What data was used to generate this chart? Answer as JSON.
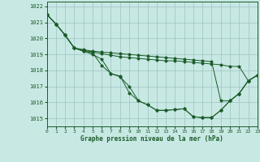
{
  "title": "Graphe pression niveau de la mer (hPa)",
  "bg_color": "#c8e8e4",
  "grid_color": "#9cc4be",
  "line_color": "#1a5c28",
  "xlim": [
    0,
    23
  ],
  "ylim": [
    1014.5,
    1022.3
  ],
  "yticks": [
    1015,
    1016,
    1017,
    1018,
    1019,
    1020,
    1021,
    1022
  ],
  "xticks": [
    0,
    1,
    2,
    3,
    4,
    5,
    6,
    7,
    8,
    9,
    10,
    11,
    12,
    13,
    14,
    15,
    16,
    17,
    18,
    19,
    20,
    21,
    22,
    23
  ],
  "series": [
    [
      1021.5,
      1020.9,
      1020.2,
      1019.4,
      1019.2,
      1019.1,
      1018.3,
      1017.8,
      1017.6,
      1017.0,
      1016.1,
      1015.85,
      1015.5,
      1015.5,
      1015.55,
      1015.6,
      1015.1,
      1015.05,
      1015.05,
      1015.5,
      1016.1,
      1016.55,
      1017.35,
      1017.7
    ],
    [
      1021.5,
      1020.9,
      1020.2,
      1019.4,
      1019.25,
      1019.15,
      1019.05,
      1018.95,
      1018.85,
      1018.8,
      1018.75,
      1018.7,
      1018.65,
      1018.6,
      1018.6,
      1018.55,
      1018.5,
      1018.45,
      1018.4,
      1018.35,
      1018.25,
      1018.25,
      1017.35,
      1017.7
    ],
    [
      1021.5,
      1020.9,
      1020.2,
      1019.4,
      1019.3,
      1019.2,
      1019.15,
      1019.1,
      1019.05,
      1019.0,
      1018.95,
      1018.9,
      1018.85,
      1018.8,
      1018.75,
      1018.7,
      1018.65,
      1018.6,
      1018.55,
      1016.1,
      1016.1,
      1016.55,
      1017.35,
      1017.7
    ],
    [
      1021.5,
      1020.9,
      1020.2,
      1019.4,
      1019.2,
      1019.0,
      1018.7,
      1017.8,
      1017.65,
      1016.6,
      1016.1,
      1015.85,
      1015.5,
      1015.5,
      1015.55,
      1015.6,
      1015.1,
      1015.05,
      1015.05,
      1015.5,
      1016.1,
      1016.55,
      1017.35,
      1017.7
    ]
  ]
}
